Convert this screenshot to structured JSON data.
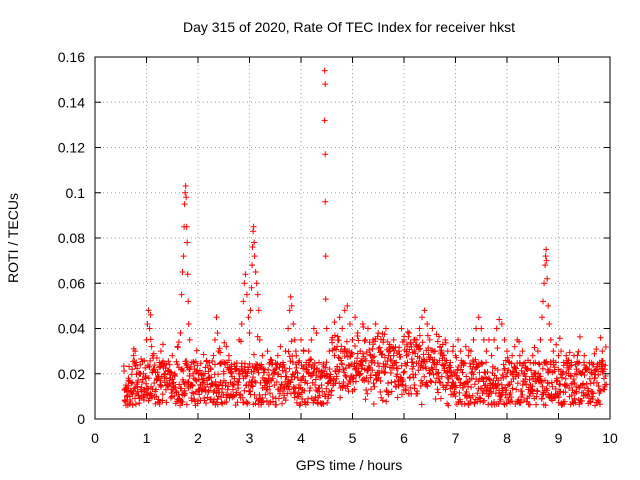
{
  "chart_data": {
    "type": "scatter",
    "title": "Day 315 of 2020, Rate Of TEC Index for receiver hkst",
    "xlabel": "GPS time / hours",
    "ylabel": "ROTI / TECUs",
    "xlim": [
      0,
      10
    ],
    "ylim": [
      0,
      0.16
    ],
    "xticks": [
      "0",
      "1",
      "2",
      "3",
      "4",
      "5",
      "6",
      "7",
      "8",
      "9",
      "10"
    ],
    "yticks": [
      "0",
      "0.02",
      "0.04",
      "0.06",
      "0.08",
      "0.1",
      "0.12",
      "0.14",
      "0.16"
    ],
    "grid": true,
    "marker": "+",
    "color": "#ff0000",
    "series": [
      {
        "name": "ROTI",
        "points": [
          [
            0.58,
            0.008
          ],
          [
            0.6,
            0.015
          ],
          [
            0.62,
            0.012
          ],
          [
            0.65,
            0.018
          ],
          [
            0.68,
            0.01
          ],
          [
            0.72,
            0.022
          ],
          [
            0.75,
            0.028
          ],
          [
            0.78,
            0.03
          ],
          [
            0.8,
            0.025
          ],
          [
            0.83,
            0.012
          ],
          [
            0.86,
            0.009
          ],
          [
            0.9,
            0.014
          ],
          [
            0.94,
            0.02
          ],
          [
            0.98,
            0.018
          ],
          [
            1.0,
            0.035
          ],
          [
            1.02,
            0.042
          ],
          [
            1.04,
            0.048
          ],
          [
            1.06,
            0.04
          ],
          [
            1.08,
            0.046
          ],
          [
            1.1,
            0.032
          ],
          [
            1.12,
            0.028
          ],
          [
            1.15,
            0.022
          ],
          [
            1.2,
            0.018
          ],
          [
            1.25,
            0.025
          ],
          [
            1.28,
            0.03
          ],
          [
            1.32,
            0.033
          ],
          [
            1.35,
            0.02
          ],
          [
            1.4,
            0.015
          ],
          [
            1.45,
            0.024
          ],
          [
            1.5,
            0.028
          ],
          [
            1.55,
            0.02
          ],
          [
            1.6,
            0.032
          ],
          [
            1.63,
            0.034
          ],
          [
            1.66,
            0.038
          ],
          [
            1.68,
            0.055
          ],
          [
            1.7,
            0.065
          ],
          [
            1.72,
            0.072
          ],
          [
            1.73,
            0.085
          ],
          [
            1.74,
            0.095
          ],
          [
            1.75,
            0.1
          ],
          [
            1.76,
            0.103
          ],
          [
            1.77,
            0.098
          ],
          [
            1.78,
            0.085
          ],
          [
            1.79,
            0.078
          ],
          [
            1.8,
            0.064
          ],
          [
            1.81,
            0.052
          ],
          [
            1.82,
            0.042
          ],
          [
            1.84,
            0.035
          ],
          [
            1.88,
            0.025
          ],
          [
            1.92,
            0.018
          ],
          [
            1.96,
            0.012
          ],
          [
            2.0,
            0.008
          ],
          [
            2.05,
            0.015
          ],
          [
            2.1,
            0.02
          ],
          [
            2.15,
            0.012
          ],
          [
            2.2,
            0.018
          ],
          [
            2.25,
            0.022
          ],
          [
            2.3,
            0.028
          ],
          [
            2.33,
            0.035
          ],
          [
            2.36,
            0.045
          ],
          [
            2.38,
            0.038
          ],
          [
            2.4,
            0.03
          ],
          [
            2.45,
            0.025
          ],
          [
            2.5,
            0.02
          ],
          [
            2.55,
            0.032
          ],
          [
            2.6,
            0.028
          ],
          [
            2.65,
            0.02
          ],
          [
            2.7,
            0.015
          ],
          [
            2.75,
            0.022
          ],
          [
            2.8,
            0.035
          ],
          [
            2.85,
            0.042
          ],
          [
            2.88,
            0.052
          ],
          [
            2.9,
            0.06
          ],
          [
            2.92,
            0.064
          ],
          [
            2.95,
            0.055
          ],
          [
            2.98,
            0.045
          ],
          [
            3.0,
            0.038
          ],
          [
            3.02,
            0.048
          ],
          [
            3.04,
            0.058
          ],
          [
            3.05,
            0.068
          ],
          [
            3.06,
            0.076
          ],
          [
            3.07,
            0.083
          ],
          [
            3.08,
            0.085
          ],
          [
            3.09,
            0.078
          ],
          [
            3.1,
            0.072
          ],
          [
            3.12,
            0.065
          ],
          [
            3.14,
            0.06
          ],
          [
            3.16,
            0.055
          ],
          [
            3.18,
            0.048
          ],
          [
            3.2,
            0.035
          ],
          [
            3.25,
            0.028
          ],
          [
            3.3,
            0.022
          ],
          [
            3.35,
            0.03
          ],
          [
            3.4,
            0.025
          ],
          [
            3.45,
            0.018
          ],
          [
            3.5,
            0.022
          ],
          [
            3.55,
            0.028
          ],
          [
            3.6,
            0.032
          ],
          [
            3.65,
            0.025
          ],
          [
            3.7,
            0.03
          ],
          [
            3.75,
            0.04
          ],
          [
            3.78,
            0.048
          ],
          [
            3.8,
            0.054
          ],
          [
            3.82,
            0.05
          ],
          [
            3.85,
            0.042
          ],
          [
            3.88,
            0.035
          ],
          [
            3.9,
            0.03
          ],
          [
            3.95,
            0.025
          ],
          [
            4.0,
            0.035
          ],
          [
            4.05,
            0.03
          ],
          [
            4.1,
            0.025
          ],
          [
            4.15,
            0.03
          ],
          [
            4.2,
            0.035
          ],
          [
            4.25,
            0.04
          ],
          [
            4.3,
            0.038
          ],
          [
            4.35,
            0.025
          ],
          [
            4.4,
            0.015
          ],
          [
            4.46,
            0.154
          ],
          [
            4.47,
            0.148
          ],
          [
            4.46,
            0.132
          ],
          [
            4.47,
            0.117
          ],
          [
            4.47,
            0.096
          ],
          [
            4.48,
            0.072
          ],
          [
            4.48,
            0.053
          ],
          [
            4.5,
            0.04
          ],
          [
            4.55,
            0.03
          ],
          [
            4.6,
            0.035
          ],
          [
            4.65,
            0.028
          ],
          [
            4.7,
            0.032
          ],
          [
            4.75,
            0.045
          ],
          [
            4.8,
            0.04
          ],
          [
            4.85,
            0.048
          ],
          [
            4.9,
            0.05
          ],
          [
            4.95,
            0.042
          ],
          [
            5.0,
            0.035
          ],
          [
            5.05,
            0.045
          ],
          [
            5.1,
            0.038
          ],
          [
            5.15,
            0.03
          ],
          [
            5.2,
            0.042
          ],
          [
            5.25,
            0.035
          ],
          [
            5.3,
            0.04
          ],
          [
            5.35,
            0.028
          ],
          [
            5.4,
            0.035
          ],
          [
            5.45,
            0.042
          ],
          [
            5.5,
            0.038
          ],
          [
            5.55,
            0.03
          ],
          [
            5.6,
            0.035
          ],
          [
            5.65,
            0.04
          ],
          [
            5.7,
            0.028
          ],
          [
            5.75,
            0.032
          ],
          [
            5.8,
            0.035
          ],
          [
            5.85,
            0.025
          ],
          [
            5.9,
            0.03
          ],
          [
            5.95,
            0.04
          ],
          [
            6.0,
            0.035
          ],
          [
            6.05,
            0.028
          ],
          [
            6.1,
            0.038
          ],
          [
            6.15,
            0.025
          ],
          [
            6.2,
            0.03
          ],
          [
            6.25,
            0.035
          ],
          [
            6.3,
            0.04
          ],
          [
            6.35,
            0.045
          ],
          [
            6.4,
            0.048
          ],
          [
            6.45,
            0.042
          ],
          [
            6.5,
            0.035
          ],
          [
            6.55,
            0.04
          ],
          [
            6.6,
            0.03
          ],
          [
            6.65,
            0.025
          ],
          [
            6.7,
            0.032
          ],
          [
            6.75,
            0.028
          ],
          [
            6.8,
            0.035
          ],
          [
            6.85,
            0.03
          ],
          [
            6.9,
            0.025
          ],
          [
            6.95,
            0.03
          ],
          [
            7.0,
            0.028
          ],
          [
            7.05,
            0.035
          ],
          [
            7.1,
            0.03
          ],
          [
            7.15,
            0.025
          ],
          [
            7.2,
            0.032
          ],
          [
            7.25,
            0.028
          ],
          [
            7.3,
            0.03
          ],
          [
            7.35,
            0.035
          ],
          [
            7.4,
            0.04
          ],
          [
            7.45,
            0.045
          ],
          [
            7.5,
            0.04
          ],
          [
            7.55,
            0.035
          ],
          [
            7.6,
            0.03
          ],
          [
            7.65,
            0.035
          ],
          [
            7.7,
            0.028
          ],
          [
            7.75,
            0.035
          ],
          [
            7.8,
            0.04
          ],
          [
            7.85,
            0.044
          ],
          [
            7.9,
            0.042
          ],
          [
            7.95,
            0.035
          ],
          [
            8.0,
            0.03
          ],
          [
            8.05,
            0.025
          ],
          [
            8.1,
            0.028
          ],
          [
            8.15,
            0.032
          ],
          [
            8.2,
            0.035
          ],
          [
            8.25,
            0.028
          ],
          [
            8.3,
            0.03
          ],
          [
            8.35,
            0.025
          ],
          [
            8.4,
            0.022
          ],
          [
            8.45,
            0.025
          ],
          [
            8.5,
            0.028
          ],
          [
            8.55,
            0.025
          ],
          [
            8.6,
            0.03
          ],
          [
            8.65,
            0.035
          ],
          [
            8.68,
            0.045
          ],
          [
            8.7,
            0.052
          ],
          [
            8.72,
            0.06
          ],
          [
            8.74,
            0.068
          ],
          [
            8.75,
            0.072
          ],
          [
            8.76,
            0.075
          ],
          [
            8.77,
            0.07
          ],
          [
            8.78,
            0.062
          ],
          [
            8.8,
            0.05
          ],
          [
            8.82,
            0.042
          ],
          [
            8.85,
            0.035
          ],
          [
            8.9,
            0.03
          ],
          [
            8.95,
            0.025
          ],
          [
            9.0,
            0.028
          ],
          [
            9.05,
            0.03
          ],
          [
            9.1,
            0.025
          ],
          [
            9.15,
            0.028
          ],
          [
            9.2,
            0.022
          ],
          [
            9.25,
            0.025
          ],
          [
            9.3,
            0.028
          ],
          [
            9.35,
            0.022
          ],
          [
            9.4,
            0.025
          ],
          [
            9.45,
            0.02
          ],
          [
            9.5,
            0.028
          ],
          [
            9.55,
            0.022
          ],
          [
            9.6,
            0.025
          ],
          [
            9.65,
            0.02
          ],
          [
            9.7,
            0.018
          ],
          [
            9.75,
            0.022
          ],
          [
            9.8,
            0.025
          ],
          [
            9.85,
            0.03
          ],
          [
            9.9,
            0.022
          ]
        ]
      }
    ]
  }
}
